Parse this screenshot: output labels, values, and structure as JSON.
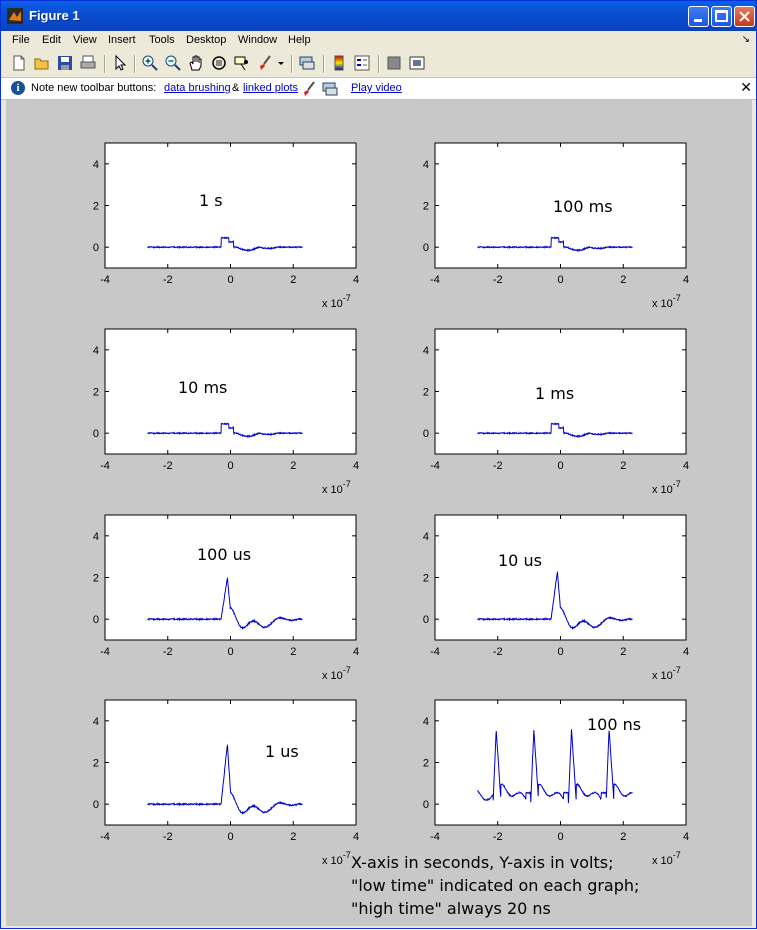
{
  "window": {
    "title": "Figure 1",
    "buttons": [
      "minimize",
      "maximize",
      "close"
    ]
  },
  "menu": [
    "File",
    "Edit",
    "View",
    "Insert",
    "Tools",
    "Desktop",
    "Window",
    "Help"
  ],
  "toolbar": {
    "icons": [
      "new-figure-icon",
      "open-icon",
      "save-icon",
      "print-icon",
      "edit-plot-icon",
      "zoom-in-icon",
      "zoom-out-icon",
      "pan-icon",
      "rotate-3d-icon",
      "data-cursor-icon",
      "brush-icon",
      "brush-dropdown-icon",
      "link-icon",
      "colorbar-icon",
      "legend-icon",
      "hide-plot-tools-icon",
      "show-plot-tools-icon"
    ]
  },
  "infobar": {
    "note": "Note new toolbar buttons:",
    "link1": "data brushing",
    "amp": "&",
    "link2": "linked plots",
    "link3": "Play video"
  },
  "chart_data": [
    {
      "type": "line",
      "label": "1 s",
      "xlim": [
        -4,
        4
      ],
      "ylim": [
        -1,
        5
      ],
      "xticks": [
        -4,
        -2,
        0,
        2,
        4
      ],
      "yticks": [
        0,
        2,
        4
      ],
      "xexponent": "x 10^-7",
      "pulse": "small",
      "peak": 0.45
    },
    {
      "type": "line",
      "label": "100 ms",
      "xlim": [
        -4,
        4
      ],
      "ylim": [
        -1,
        5
      ],
      "xticks": [
        -4,
        -2,
        0,
        2,
        4
      ],
      "yticks": [
        0,
        2,
        4
      ],
      "xexponent": "x 10^-7",
      "pulse": "small",
      "peak": 0.45
    },
    {
      "type": "line",
      "label": "10 ms",
      "xlim": [
        -4,
        4
      ],
      "ylim": [
        -1,
        5
      ],
      "xticks": [
        -4,
        -2,
        0,
        2,
        4
      ],
      "yticks": [
        0,
        2,
        4
      ],
      "xexponent": "x 10^-7",
      "pulse": "small",
      "peak": 0.45
    },
    {
      "type": "line",
      "label": "1 ms",
      "xlim": [
        -4,
        4
      ],
      "ylim": [
        -1,
        5
      ],
      "xticks": [
        -4,
        -2,
        0,
        2,
        4
      ],
      "yticks": [
        0,
        2,
        4
      ],
      "xexponent": "x 10^-7",
      "pulse": "small",
      "peak": 0.45
    },
    {
      "type": "line",
      "label": "100 us",
      "xlim": [
        -4,
        4
      ],
      "ylim": [
        -1,
        5
      ],
      "xticks": [
        -4,
        -2,
        0,
        2,
        4
      ],
      "yticks": [
        0,
        2,
        4
      ],
      "xexponent": "x 10^-7",
      "pulse": "large",
      "peak": 2.0
    },
    {
      "type": "line",
      "label": "10 us",
      "xlim": [
        -4,
        4
      ],
      "ylim": [
        -1,
        5
      ],
      "xticks": [
        -4,
        -2,
        0,
        2,
        4
      ],
      "yticks": [
        0,
        2,
        4
      ],
      "xexponent": "x 10^-7",
      "pulse": "large",
      "peak": 2.3
    },
    {
      "type": "line",
      "label": "1 us",
      "xlim": [
        -4,
        4
      ],
      "ylim": [
        -1,
        5
      ],
      "xticks": [
        -4,
        -2,
        0,
        2,
        4
      ],
      "yticks": [
        0,
        2,
        4
      ],
      "xexponent": "x 10^-7",
      "pulse": "large",
      "peak": 2.9
    },
    {
      "type": "line",
      "label": "100 ns",
      "xlim": [
        -4,
        4
      ],
      "ylim": [
        -1,
        5
      ],
      "xticks": [
        -4,
        -2,
        0,
        2,
        4
      ],
      "yticks": [
        0,
        2,
        4
      ],
      "xexponent": "x 10^-7",
      "pulse": "periodic",
      "peak": 3.6
    }
  ],
  "figure_note": "X-axis in seconds, Y-axis in volts;\n\"low time\" indicated on each graph;\n\"high time\" always 20 ns",
  "colors": {
    "line": "#0000cc",
    "figure_bg": "#c8c8c8",
    "axes_bg": "#ffffff"
  }
}
